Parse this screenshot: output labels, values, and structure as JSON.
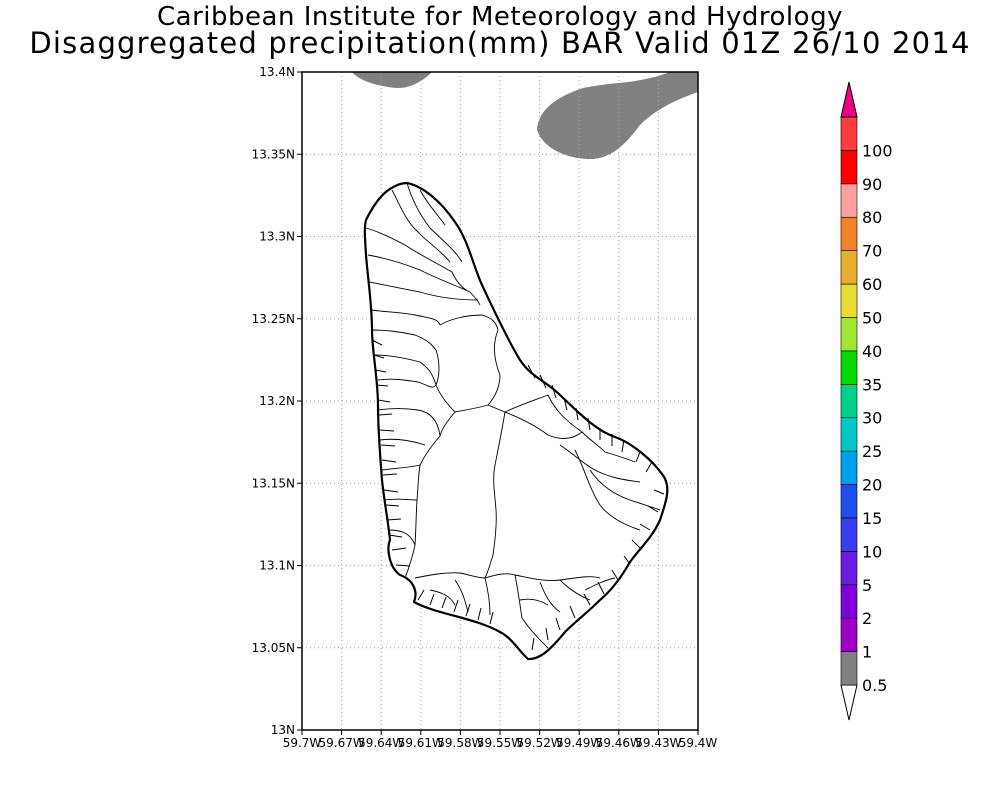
{
  "title": {
    "line1": "Caribbean Institute for Meteorology and Hydrology",
    "line2": "Disaggregated precipitation(mm) BAR Valid 01Z 26/10 2014"
  },
  "map": {
    "y_ticks": [
      "13.4N",
      "13.35N",
      "13.3N",
      "13.25N",
      "13.2N",
      "13.15N",
      "13.1N",
      "13.05N",
      "13N"
    ],
    "x_ticks": [
      "59.7W",
      "59.67W",
      "59.64W",
      "59.61W",
      "59.58W",
      "59.55W",
      "59.52W",
      "59.49W",
      "59.46W",
      "59.43W",
      "59.4W"
    ],
    "lat_range": [
      13.0,
      13.4
    ],
    "lon_range": [
      -59.7,
      -59.4
    ],
    "grid": true
  },
  "precip_areas": [
    {
      "name": "precip-area-north",
      "amount_band": "0.5-1",
      "color": "#808080"
    },
    {
      "name": "precip-area-northeast",
      "amount_band": "0.5-1",
      "color": "#808080"
    }
  ],
  "colorbar": {
    "colors": [
      "#808080",
      "#a000c8",
      "#8000d8",
      "#6c1ce0",
      "#3c3cf0",
      "#1e50f0",
      "#00a0f0",
      "#00c8c8",
      "#00d28c",
      "#00dc00",
      "#a0e632",
      "#e6dc32",
      "#e6af2d",
      "#f08228",
      "#ffa0a0",
      "#ff0000",
      "#ff3c3c",
      "#f0007f"
    ],
    "labels": [
      "0.5",
      "1",
      "2",
      "5",
      "10",
      "15",
      "20",
      "25",
      "30",
      "35",
      "40",
      "50",
      "60",
      "70",
      "80",
      "90",
      "100"
    ]
  }
}
